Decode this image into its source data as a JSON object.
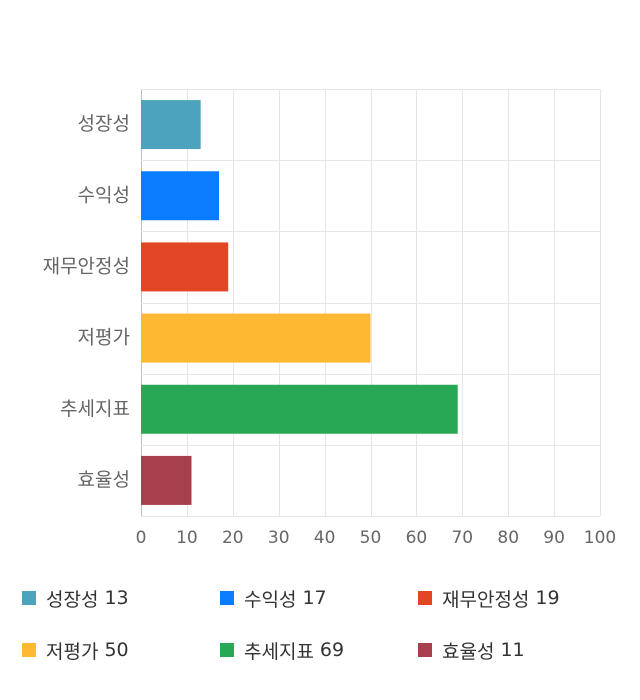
{
  "chart_data": {
    "type": "bar",
    "orientation": "horizontal",
    "categories": [
      "성장성",
      "수익성",
      "재무안정성",
      "저평가",
      "추세지표",
      "효율성"
    ],
    "values": [
      13,
      17,
      19,
      50,
      69,
      11
    ],
    "colors": [
      "#4ba3bd",
      "#0a7cff",
      "#e24624",
      "#ffb831",
      "#28a754",
      "#a83f4c"
    ],
    "xlim": [
      0,
      100
    ],
    "xticks": [
      0,
      10,
      20,
      30,
      40,
      50,
      60,
      70,
      80,
      90,
      100
    ],
    "grid": true,
    "legend_position": "bottom"
  }
}
